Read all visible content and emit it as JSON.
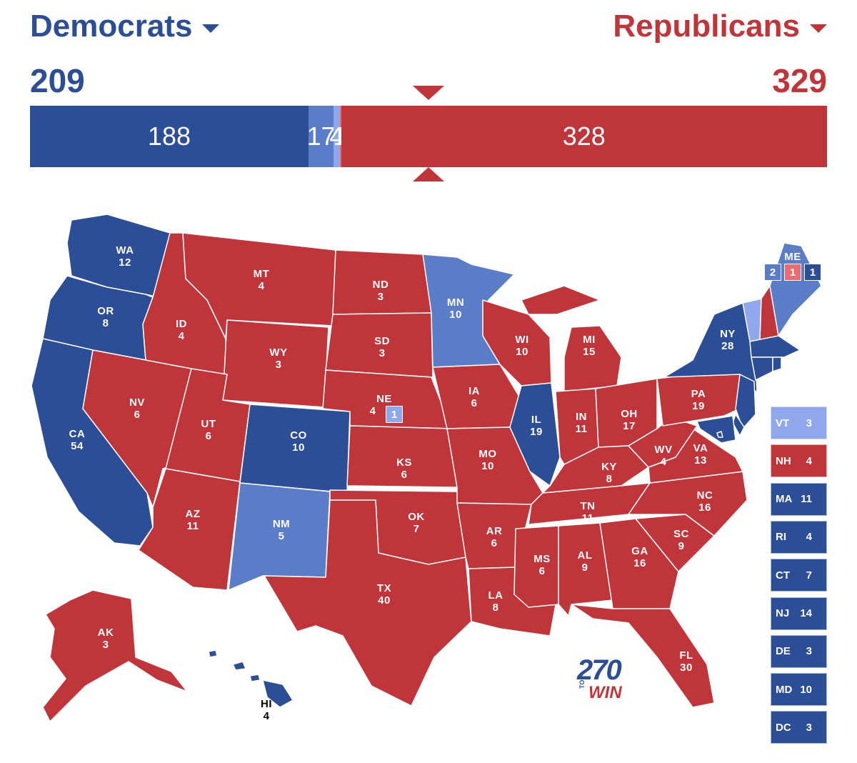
{
  "header": {
    "dem_label": "Democrats",
    "rep_label": "Republicans",
    "dem_total": "209",
    "rep_total": "329"
  },
  "bar": [
    {
      "label": "188",
      "value": 188,
      "color": "#2c4e96"
    },
    {
      "label": "17",
      "value": 17,
      "color": "#5b7dc8"
    },
    {
      "label": "4",
      "value": 4,
      "color": "#8fa8ec"
    },
    {
      "label": "1",
      "value": 1,
      "color": "#e76d71"
    },
    {
      "label": "328",
      "value": 328,
      "color": "#c0353a"
    }
  ],
  "colors": {
    "safe_dem": "#2c4e96",
    "likely_dem": "#5b7dc8",
    "lean_dem": "#8fa8ec",
    "lean_rep": "#e76d71",
    "safe_rep": "#c0353a"
  },
  "states": [
    {
      "abbr": "WA",
      "ev": "12"
    },
    {
      "abbr": "OR",
      "ev": "8"
    },
    {
      "abbr": "CA",
      "ev": "54"
    },
    {
      "abbr": "NV",
      "ev": "6"
    },
    {
      "abbr": "ID",
      "ev": "4"
    },
    {
      "abbr": "MT",
      "ev": "4"
    },
    {
      "abbr": "WY",
      "ev": "3"
    },
    {
      "abbr": "UT",
      "ev": "6"
    },
    {
      "abbr": "AZ",
      "ev": "11"
    },
    {
      "abbr": "CO",
      "ev": "10"
    },
    {
      "abbr": "NM",
      "ev": "5"
    },
    {
      "abbr": "ND",
      "ev": "3"
    },
    {
      "abbr": "SD",
      "ev": "3"
    },
    {
      "abbr": "NE",
      "ev": "4"
    },
    {
      "abbr": "KS",
      "ev": "6"
    },
    {
      "abbr": "OK",
      "ev": "7"
    },
    {
      "abbr": "TX",
      "ev": "40"
    },
    {
      "abbr": "MN",
      "ev": "10"
    },
    {
      "abbr": "IA",
      "ev": "6"
    },
    {
      "abbr": "MO",
      "ev": "10"
    },
    {
      "abbr": "AR",
      "ev": "6"
    },
    {
      "abbr": "LA",
      "ev": "8"
    },
    {
      "abbr": "WI",
      "ev": "10"
    },
    {
      "abbr": "IL",
      "ev": "19"
    },
    {
      "abbr": "MI",
      "ev": "15"
    },
    {
      "abbr": "IN",
      "ev": "11"
    },
    {
      "abbr": "OH",
      "ev": "17"
    },
    {
      "abbr": "KY",
      "ev": "8"
    },
    {
      "abbr": "TN",
      "ev": "11"
    },
    {
      "abbr": "MS",
      "ev": "6"
    },
    {
      "abbr": "AL",
      "ev": "9"
    },
    {
      "abbr": "GA",
      "ev": "16"
    },
    {
      "abbr": "FL",
      "ev": "30"
    },
    {
      "abbr": "SC",
      "ev": "9"
    },
    {
      "abbr": "NC",
      "ev": "16"
    },
    {
      "abbr": "VA",
      "ev": "13"
    },
    {
      "abbr": "WV",
      "ev": "4"
    },
    {
      "abbr": "PA",
      "ev": "19"
    },
    {
      "abbr": "NY",
      "ev": "28"
    },
    {
      "abbr": "AK",
      "ev": "3"
    },
    {
      "abbr": "HI",
      "ev": "4"
    },
    {
      "abbr": "ME",
      "ev": ""
    }
  ],
  "me_districts": [
    "2",
    "1",
    "1"
  ],
  "ne_district": "1",
  "sidebar": [
    {
      "abbr": "VT",
      "ev": "3",
      "color": "#8fa8ec"
    },
    {
      "abbr": "NH",
      "ev": "4",
      "color": "#c0353a"
    },
    {
      "abbr": "MA",
      "ev": "11",
      "color": "#2c4e96"
    },
    {
      "abbr": "RI",
      "ev": "4",
      "color": "#2c4e96"
    },
    {
      "abbr": "CT",
      "ev": "7",
      "color": "#2c4e96"
    },
    {
      "abbr": "NJ",
      "ev": "14",
      "color": "#2c4e96"
    },
    {
      "abbr": "DE",
      "ev": "3",
      "color": "#2c4e96"
    },
    {
      "abbr": "MD",
      "ev": "10",
      "color": "#2c4e96"
    },
    {
      "abbr": "DC",
      "ev": "3",
      "color": "#2c4e96"
    }
  ],
  "logo": {
    "num": "270",
    "to": "TO",
    "win": "WIN"
  }
}
